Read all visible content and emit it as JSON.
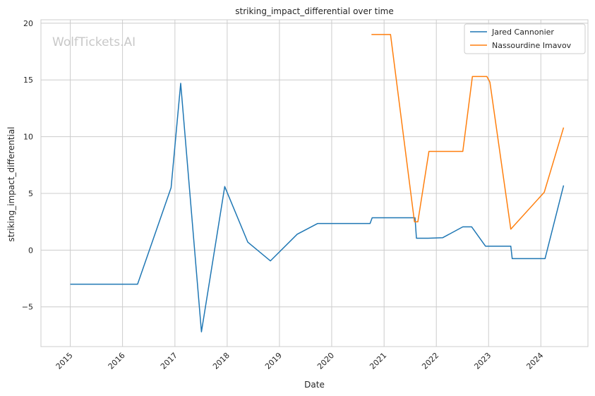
{
  "chart_data": {
    "type": "line",
    "title": "striking_impact_differential over time",
    "xlabel": "Date",
    "ylabel": "striking_impact_differential",
    "watermark": "WolfTickets.AI",
    "xlim": [
      "2014-06-10",
      "2024-11-25"
    ],
    "ylim": [
      -8.5,
      20.3
    ],
    "x_ticks": [
      "2015",
      "2016",
      "2017",
      "2018",
      "2019",
      "2020",
      "2021",
      "2022",
      "2023",
      "2024"
    ],
    "y_ticks": [
      -5,
      0,
      5,
      10,
      15,
      20
    ],
    "y_tick_labels": [
      "−5",
      "0",
      "5",
      "10",
      "15",
      "20"
    ],
    "grid": true,
    "legend_position": "top-right",
    "series": [
      {
        "name": "Jared Cannonier",
        "color": "#1f77b4",
        "points": [
          [
            "2015-01-01",
            -3.0
          ],
          [
            "2016-04-15",
            -3.0
          ],
          [
            "2016-12-05",
            5.5
          ],
          [
            "2017-02-10",
            14.7
          ],
          [
            "2017-07-05",
            -7.2
          ],
          [
            "2017-12-15",
            5.6
          ],
          [
            "2018-05-25",
            0.7
          ],
          [
            "2018-10-30",
            -0.95
          ],
          [
            "2019-05-05",
            1.4
          ],
          [
            "2019-09-25",
            2.35
          ],
          [
            "2020-09-25",
            2.35
          ],
          [
            "2020-10-10",
            2.85
          ],
          [
            "2021-08-05",
            2.85
          ],
          [
            "2021-08-15",
            1.05
          ],
          [
            "2021-11-05",
            1.05
          ],
          [
            "2022-02-15",
            1.1
          ],
          [
            "2022-07-05",
            2.05
          ],
          [
            "2022-09-05",
            2.05
          ],
          [
            "2022-12-10",
            0.35
          ],
          [
            "2023-06-05",
            0.35
          ],
          [
            "2023-06-15",
            -0.75
          ],
          [
            "2024-01-30",
            -0.75
          ],
          [
            "2024-06-08",
            5.7
          ]
        ]
      },
      {
        "name": "Nassourdine Imavov",
        "color": "#ff7f0e",
        "points": [
          [
            "2020-10-05",
            19.0
          ],
          [
            "2021-02-15",
            19.0
          ],
          [
            "2021-08-01",
            2.5
          ],
          [
            "2021-08-25",
            2.5
          ],
          [
            "2021-11-10",
            8.7
          ],
          [
            "2022-07-05",
            8.7
          ],
          [
            "2022-09-10",
            15.3
          ],
          [
            "2022-12-20",
            15.3
          ],
          [
            "2023-01-10",
            14.8
          ],
          [
            "2023-06-05",
            1.85
          ],
          [
            "2024-01-25",
            5.1
          ],
          [
            "2024-06-08",
            10.8
          ]
        ]
      }
    ]
  }
}
